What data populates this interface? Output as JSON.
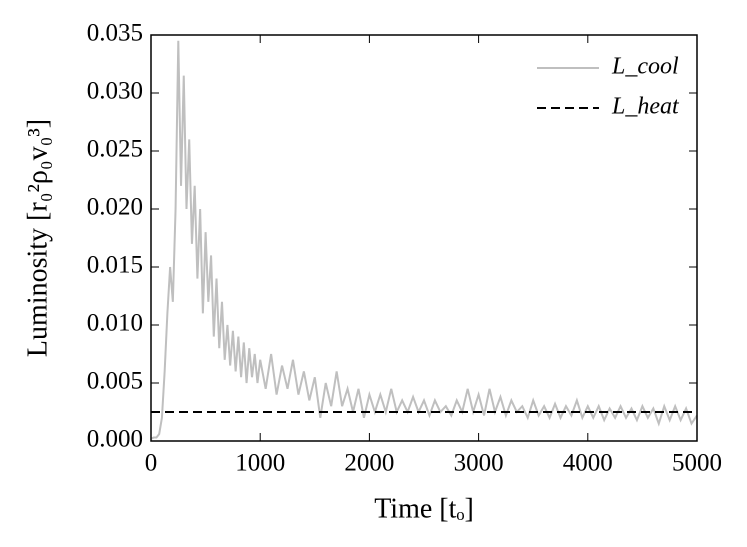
{
  "chart_data": {
    "type": "line",
    "xlabel": "Time [tₒ]",
    "ylabel": "Luminosity [r₀²ρ₀v₀³]",
    "xlim": [
      0,
      5000
    ],
    "xticks": [
      0,
      1000,
      2000,
      3000,
      4000,
      5000
    ],
    "ylim": [
      0,
      0.035
    ],
    "yticks": [
      {
        "value": 0,
        "label": "0.000"
      },
      0.005,
      {
        "value": 0.01,
        "label": "0.010"
      },
      0.015,
      {
        "value": 0.02,
        "label": "0.020"
      },
      0.025,
      {
        "value": 0.03,
        "label": "0.030"
      },
      0.035
    ],
    "legend": "upper right",
    "series": [
      {
        "name": "L_cool",
        "color": "#bfbfbf",
        "dash": "solid",
        "x": [
          0,
          25,
          50,
          75,
          100,
          125,
          150,
          175,
          200,
          225,
          250,
          275,
          300,
          325,
          350,
          375,
          400,
          425,
          450,
          475,
          500,
          525,
          550,
          575,
          600,
          625,
          650,
          675,
          700,
          725,
          750,
          775,
          800,
          825,
          850,
          875,
          900,
          925,
          950,
          975,
          1000,
          1050,
          1100,
          1150,
          1200,
          1250,
          1300,
          1350,
          1400,
          1450,
          1500,
          1550,
          1600,
          1650,
          1700,
          1750,
          1800,
          1850,
          1900,
          1950,
          2000,
          2050,
          2100,
          2150,
          2200,
          2250,
          2300,
          2350,
          2400,
          2450,
          2500,
          2550,
          2600,
          2650,
          2700,
          2750,
          2800,
          2850,
          2900,
          2950,
          3000,
          3050,
          3100,
          3150,
          3200,
          3250,
          3300,
          3350,
          3400,
          3450,
          3500,
          3550,
          3600,
          3650,
          3700,
          3750,
          3800,
          3850,
          3900,
          3950,
          4000,
          4050,
          4100,
          4150,
          4200,
          4250,
          4300,
          4350,
          4400,
          4450,
          4500,
          4550,
          4600,
          4650,
          4700,
          4750,
          4800,
          4850,
          4900,
          4950,
          5000
        ],
        "values": [
          0.0002,
          0.0003,
          0.0003,
          0.0006,
          0.002,
          0.006,
          0.011,
          0.015,
          0.012,
          0.02,
          0.0345,
          0.022,
          0.0315,
          0.02,
          0.026,
          0.017,
          0.022,
          0.014,
          0.02,
          0.011,
          0.018,
          0.012,
          0.016,
          0.009,
          0.014,
          0.008,
          0.012,
          0.007,
          0.01,
          0.0065,
          0.0095,
          0.006,
          0.009,
          0.0055,
          0.0085,
          0.005,
          0.008,
          0.0055,
          0.0075,
          0.005,
          0.007,
          0.0045,
          0.0075,
          0.004,
          0.0065,
          0.0045,
          0.007,
          0.004,
          0.006,
          0.0035,
          0.0055,
          0.002,
          0.005,
          0.003,
          0.006,
          0.003,
          0.0045,
          0.0025,
          0.0045,
          0.002,
          0.004,
          0.0025,
          0.004,
          0.0025,
          0.0045,
          0.0025,
          0.0035,
          0.0025,
          0.0038,
          0.0025,
          0.0035,
          0.0022,
          0.0035,
          0.0025,
          0.003,
          0.0022,
          0.0035,
          0.0025,
          0.0045,
          0.0025,
          0.004,
          0.0022,
          0.0045,
          0.0025,
          0.0038,
          0.0022,
          0.0035,
          0.0025,
          0.003,
          0.002,
          0.0035,
          0.0022,
          0.003,
          0.002,
          0.0032,
          0.002,
          0.003,
          0.0022,
          0.0035,
          0.002,
          0.003,
          0.002,
          0.003,
          0.0018,
          0.0028,
          0.002,
          0.003,
          0.002,
          0.0028,
          0.0018,
          0.003,
          0.002,
          0.0028,
          0.0015,
          0.003,
          0.0018,
          0.003,
          0.0018,
          0.0028,
          0.0015,
          0.0022
        ]
      },
      {
        "name": "L_heat",
        "color": "#000000",
        "dash": "dashed",
        "x": [
          0,
          5000
        ],
        "values": [
          0.0025,
          0.0025
        ]
      }
    ]
  }
}
